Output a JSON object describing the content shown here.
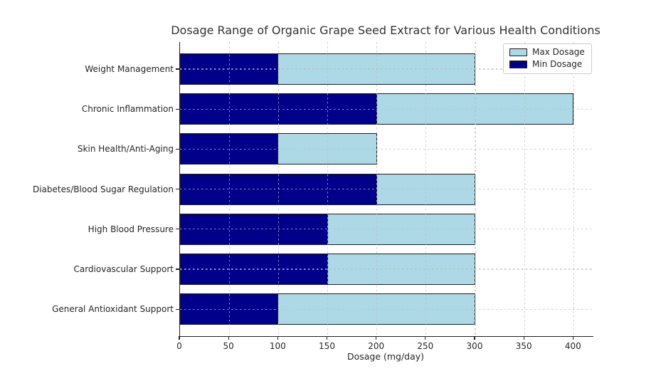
{
  "chart_data": {
    "type": "bar",
    "orientation": "horizontal",
    "title": "Dosage Range of Organic Grape Seed Extract for Various Health Conditions",
    "xlabel": "Dosage (mg/day)",
    "ylabel": "",
    "categories": [
      "Weight Management",
      "Chronic Inflammation",
      "Skin Health/Anti-Aging",
      "Diabetes/Blood Sugar Regulation",
      "High Blood Pressure",
      "Cardiovascular Support",
      "General Antioxidant Support"
    ],
    "series": [
      {
        "name": "Max Dosage",
        "color": "#ADD8E6",
        "values": [
          300,
          400,
          200,
          300,
          300,
          300,
          300
        ]
      },
      {
        "name": "Min Dosage",
        "color": "#00008B",
        "values": [
          100,
          200,
          100,
          200,
          150,
          150,
          100
        ]
      }
    ],
    "xlim": [
      0,
      420
    ],
    "xticks": [
      0,
      50,
      100,
      150,
      200,
      250,
      300,
      350,
      400
    ],
    "grid": true,
    "grid_style": "dashed",
    "legend": {
      "position": "upper right",
      "entries": [
        "Max Dosage",
        "Min Dosage"
      ]
    },
    "colors": {
      "max_dosage": "#ADD8E6",
      "min_dosage": "#00008B",
      "bar_edge": "#1f1f1f",
      "grid": "#bebebe",
      "axis": "#1f1f1f",
      "text": "#262626"
    }
  }
}
